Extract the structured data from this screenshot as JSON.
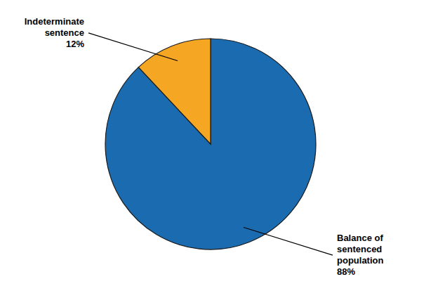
{
  "chart_data": {
    "type": "pie",
    "categories": [
      "Balance of\nsentenced\npopulation",
      "Indeterminate\nsentence"
    ],
    "values": [
      88,
      12
    ],
    "value_labels": [
      "88%",
      "12%"
    ],
    "colors": [
      "#1B6BB0",
      "#F5A623"
    ],
    "data_labels": true
  }
}
